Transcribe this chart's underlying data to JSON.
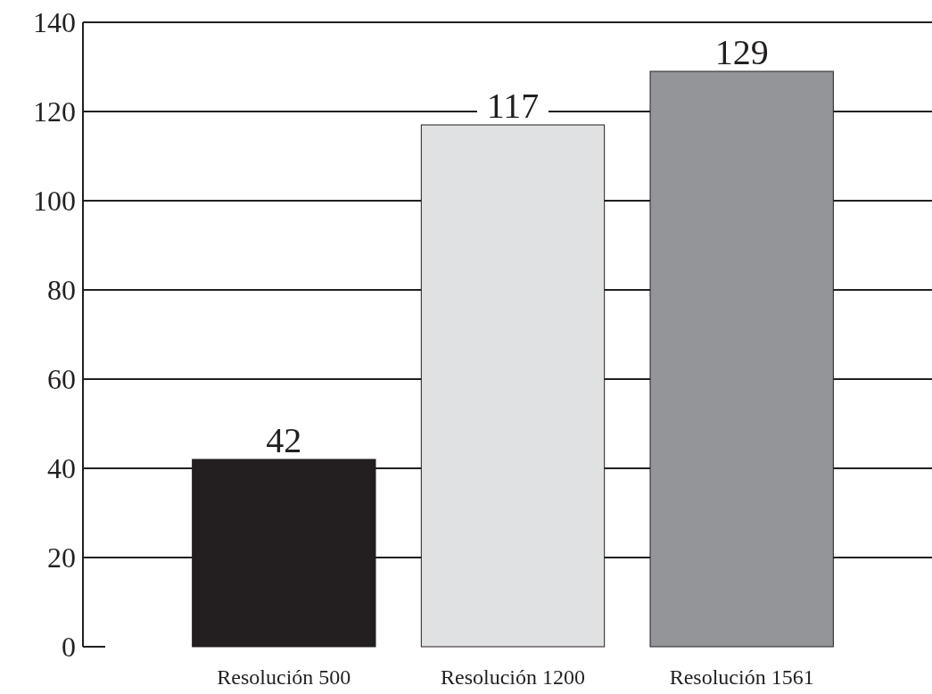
{
  "chart_data": {
    "type": "bar",
    "categories": [
      "Resolución 500",
      "Resolución 1200",
      "Resolución 1561"
    ],
    "values": [
      42,
      117,
      129
    ],
    "colors": [
      "#231f20",
      "#e0e1e3",
      "#939598"
    ],
    "ylim": [
      0,
      140
    ],
    "yticks": [
      0,
      20,
      40,
      60,
      80,
      100,
      120,
      140
    ],
    "grid": "y",
    "data_labels": true
  }
}
